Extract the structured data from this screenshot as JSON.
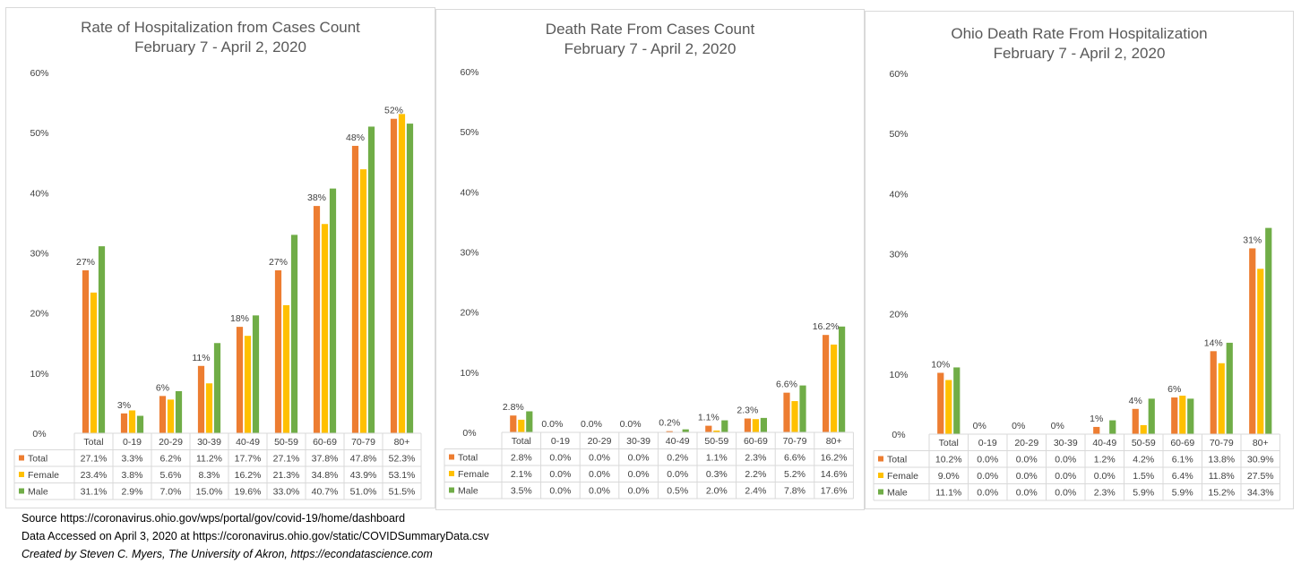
{
  "colors": {
    "Total": "#ed7d31",
    "Female": "#ffc000",
    "Male": "#70ad47",
    "grid": "#d9d9d9",
    "text": "#404040"
  },
  "yaxis": {
    "ticks": [
      "0%",
      "10%",
      "20%",
      "30%",
      "40%",
      "50%",
      "60%"
    ],
    "ylim": [
      0,
      60
    ]
  },
  "chart_data": [
    {
      "type": "bar",
      "title": "Rate of Hospitalization from Cases Count",
      "subtitle": "February 7 - April 2, 2020",
      "ylim": [
        0,
        60
      ],
      "categories": [
        "Total",
        "0-19",
        "20-29",
        "30-39",
        "40-49",
        "50-59",
        "60-69",
        "70-79",
        "80+"
      ],
      "series": [
        {
          "name": "Total",
          "values": [
            27.1,
            3.3,
            6.2,
            11.2,
            17.7,
            27.1,
            37.8,
            47.8,
            52.3
          ],
          "labels": [
            "27.1%",
            "3.3%",
            "6.2%",
            "11.2%",
            "17.7%",
            "27.1%",
            "37.8%",
            "47.8%",
            "52.3%"
          ]
        },
        {
          "name": "Female",
          "values": [
            23.4,
            3.8,
            5.6,
            8.3,
            16.2,
            21.3,
            34.8,
            43.9,
            53.1
          ],
          "labels": [
            "23.4%",
            "3.8%",
            "5.6%",
            "8.3%",
            "16.2%",
            "21.3%",
            "34.8%",
            "43.9%",
            "53.1%"
          ]
        },
        {
          "name": "Male",
          "values": [
            31.1,
            2.9,
            7.0,
            15.0,
            19.6,
            33.0,
            40.7,
            51.0,
            51.5
          ],
          "labels": [
            "31.1%",
            "2.9%",
            "7.0%",
            "15.0%",
            "19.6%",
            "33.0%",
            "40.7%",
            "51.0%",
            "51.5%"
          ]
        }
      ],
      "data_labels": [
        "27%",
        "3%",
        "6%",
        "11%",
        "18%",
        "27%",
        "38%",
        "48%",
        "52%"
      ]
    },
    {
      "type": "bar",
      "title": "Death Rate From Cases Count",
      "subtitle": "February 7 - April 2, 2020",
      "ylim": [
        0,
        60
      ],
      "categories": [
        "Total",
        "0-19",
        "20-29",
        "30-39",
        "40-49",
        "50-59",
        "60-69",
        "70-79",
        "80+"
      ],
      "series": [
        {
          "name": "Total",
          "values": [
            2.8,
            0.0,
            0.0,
            0.0,
            0.2,
            1.1,
            2.3,
            6.6,
            16.2
          ],
          "labels": [
            "2.8%",
            "0.0%",
            "0.0%",
            "0.0%",
            "0.2%",
            "1.1%",
            "2.3%",
            "6.6%",
            "16.2%"
          ]
        },
        {
          "name": "Female",
          "values": [
            2.1,
            0.0,
            0.0,
            0.0,
            0.0,
            0.3,
            2.2,
            5.2,
            14.6
          ],
          "labels": [
            "2.1%",
            "0.0%",
            "0.0%",
            "0.0%",
            "0.0%",
            "0.3%",
            "2.2%",
            "5.2%",
            "14.6%"
          ]
        },
        {
          "name": "Male",
          "values": [
            3.5,
            0.0,
            0.0,
            0.0,
            0.5,
            2.0,
            2.4,
            7.8,
            17.6
          ],
          "labels": [
            "3.5%",
            "0.0%",
            "0.0%",
            "0.0%",
            "0.5%",
            "2.0%",
            "2.4%",
            "7.8%",
            "17.6%"
          ]
        }
      ],
      "data_labels": [
        "2.8%",
        "0.0%",
        "0.0%",
        "0.0%",
        "0.2%",
        "1.1%",
        "2.3%",
        "6.6%",
        "16.2%"
      ]
    },
    {
      "type": "bar",
      "title": "Ohio Death Rate From Hospitalization",
      "subtitle": "February 7 - April 2, 2020",
      "ylim": [
        0,
        60
      ],
      "categories": [
        "Total",
        "0-19",
        "20-29",
        "30-39",
        "40-49",
        "50-59",
        "60-69",
        "70-79",
        "80+"
      ],
      "series": [
        {
          "name": "Total",
          "values": [
            10.2,
            0.0,
            0.0,
            0.0,
            1.2,
            4.2,
            6.1,
            13.8,
            30.9
          ],
          "labels": [
            "10.2%",
            "0.0%",
            "0.0%",
            "0.0%",
            "1.2%",
            "4.2%",
            "6.1%",
            "13.8%",
            "30.9%"
          ]
        },
        {
          "name": "Female",
          "values": [
            9.0,
            0.0,
            0.0,
            0.0,
            0.0,
            1.5,
            6.4,
            11.8,
            27.5
          ],
          "labels": [
            "9.0%",
            "0.0%",
            "0.0%",
            "0.0%",
            "0.0%",
            "1.5%",
            "6.4%",
            "11.8%",
            "27.5%"
          ]
        },
        {
          "name": "Male",
          "values": [
            11.1,
            0.0,
            0.0,
            0.0,
            2.3,
            5.9,
            5.9,
            15.2,
            34.3
          ],
          "labels": [
            "11.1%",
            "0.0%",
            "0.0%",
            "0.0%",
            "2.3%",
            "5.9%",
            "5.9%",
            "15.2%",
            "34.3%"
          ]
        }
      ],
      "data_labels": [
        "10%",
        "0%",
        "0%",
        "0%",
        "1%",
        "4%",
        "6%",
        "14%",
        "31%"
      ]
    }
  ],
  "sources": {
    "line1": "Source https://coronavirus.ohio.gov/wps/portal/gov/covid-19/home/dashboard",
    "line2": "Data Accessed on April 3, 2020 at https://coronavirus.ohio.gov/static/COVIDSummaryData.csv",
    "line3": "Created by Steven C. Myers, The University of Akron, https://econdatascience.com"
  }
}
